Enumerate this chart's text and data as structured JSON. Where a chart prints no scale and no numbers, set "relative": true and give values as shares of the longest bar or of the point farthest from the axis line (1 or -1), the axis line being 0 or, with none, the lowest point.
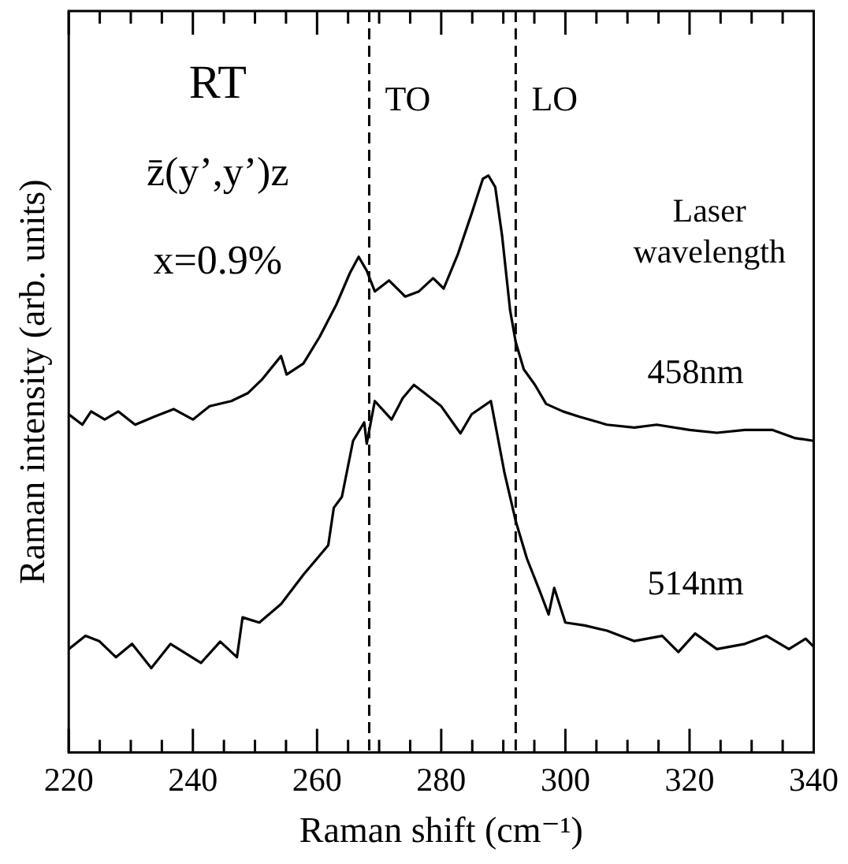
{
  "chart_data": {
    "type": "line",
    "xlabel": "Raman shift (cm⁻¹)",
    "ylabel": "Raman intensity (arb. units)",
    "relative": true,
    "xlim": [
      220,
      340
    ],
    "xticks": [
      220,
      {
        "value": 225,
        "label": null
      },
      {
        "value": 230,
        "label": null
      },
      {
        "value": 235,
        "label": null
      },
      240,
      {
        "value": 245,
        "label": null
      },
      {
        "value": 250,
        "label": null
      },
      {
        "value": 255,
        "label": null
      },
      260,
      {
        "value": 265,
        "label": null
      },
      {
        "value": 270,
        "label": null
      },
      {
        "value": 275,
        "label": null
      },
      280,
      {
        "value": 285,
        "label": null
      },
      {
        "value": 290,
        "label": null
      },
      {
        "value": 295,
        "label": null
      },
      300,
      {
        "value": 305,
        "label": null
      },
      {
        "value": 310,
        "label": null
      },
      {
        "value": 315,
        "label": null
      },
      320,
      {
        "value": 325,
        "label": null
      },
      {
        "value": 330,
        "label": null
      },
      {
        "value": 335,
        "label": null
      },
      340
    ],
    "grid": false,
    "legend": false,
    "marker": "none",
    "line_style": "solid",
    "ref_lines": [
      {
        "axis": "x",
        "value": 268.4,
        "label": "TO",
        "color": "#000000",
        "line_style": "dashed"
      },
      {
        "axis": "x",
        "value": 292,
        "label": "LO",
        "color": "#000000",
        "line_style": "dashed"
      }
    ],
    "annotations": [
      "RT",
      "z̄(y’,y’)z",
      "x=0.9%",
      "Laser wavelength"
    ],
    "series": [
      {
        "name": "458nm",
        "color": "#000000",
        "x": [
          220,
          222.2,
          223.6,
          225.8,
          228,
          230.7,
          233.8,
          236.9,
          240,
          242.7,
          246.2,
          248.9,
          251.1,
          254.2,
          255.1,
          257.8,
          260.4,
          263.1,
          265.3,
          266.7,
          268,
          269.3,
          271.6,
          274.2,
          276.4,
          278.7,
          280.4,
          282.7,
          284.9,
          286.7,
          287.6,
          288.7,
          289.8,
          291.1,
          292,
          293.3,
          295.1,
          296.9,
          299.6,
          302.2,
          306.7,
          311.1,
          314.7,
          320,
          324.4,
          328.9,
          333.3,
          336.9,
          340
        ],
        "values": [
          0.586,
          0.568,
          0.591,
          0.577,
          0.591,
          0.568,
          0.582,
          0.595,
          0.577,
          0.6,
          0.609,
          0.623,
          0.646,
          0.687,
          0.655,
          0.674,
          0.72,
          0.776,
          0.831,
          0.859,
          0.835,
          0.799,
          0.818,
          0.79,
          0.799,
          0.822,
          0.804,
          0.864,
          0.934,
          0.994,
          1,
          0.98,
          0.896,
          0.766,
          0.711,
          0.664,
          0.637,
          0.604,
          0.591,
          0.582,
          0.568,
          0.563,
          0.568,
          0.559,
          0.554,
          0.559,
          0.559,
          0.545,
          0.54
        ]
      },
      {
        "name": "514nm",
        "color": "#000000",
        "x": [
          220,
          222.7,
          224.9,
          227.6,
          230.2,
          233.3,
          236.4,
          241.3,
          244.4,
          247.1,
          248,
          250.7,
          254.2,
          257.8,
          261.8,
          262.7,
          264,
          265.8,
          267.6,
          268,
          269.3,
          272,
          273.8,
          275.6,
          277.3,
          280,
          283.1,
          284.9,
          288,
          288.9,
          290.2,
          292,
          293.8,
          296,
          297.3,
          298.2,
          300,
          303.1,
          306.7,
          311.1,
          315.6,
          318.2,
          320.9,
          324.4,
          328.9,
          332.4,
          336,
          338.7,
          340
        ],
        "values": [
          0.179,
          0.202,
          0.193,
          0.165,
          0.188,
          0.146,
          0.188,
          0.155,
          0.192,
          0.165,
          0.234,
          0.225,
          0.257,
          0.308,
          0.359,
          0.424,
          0.443,
          0.54,
          0.572,
          0.535,
          0.609,
          0.577,
          0.614,
          0.637,
          0.623,
          0.6,
          0.553,
          0.586,
          0.609,
          0.558,
          0.484,
          0.401,
          0.336,
          0.276,
          0.239,
          0.285,
          0.225,
          0.22,
          0.211,
          0.193,
          0.202,
          0.174,
          0.206,
          0.179,
          0.188,
          0.202,
          0.179,
          0.197,
          0.183
        ]
      }
    ]
  }
}
